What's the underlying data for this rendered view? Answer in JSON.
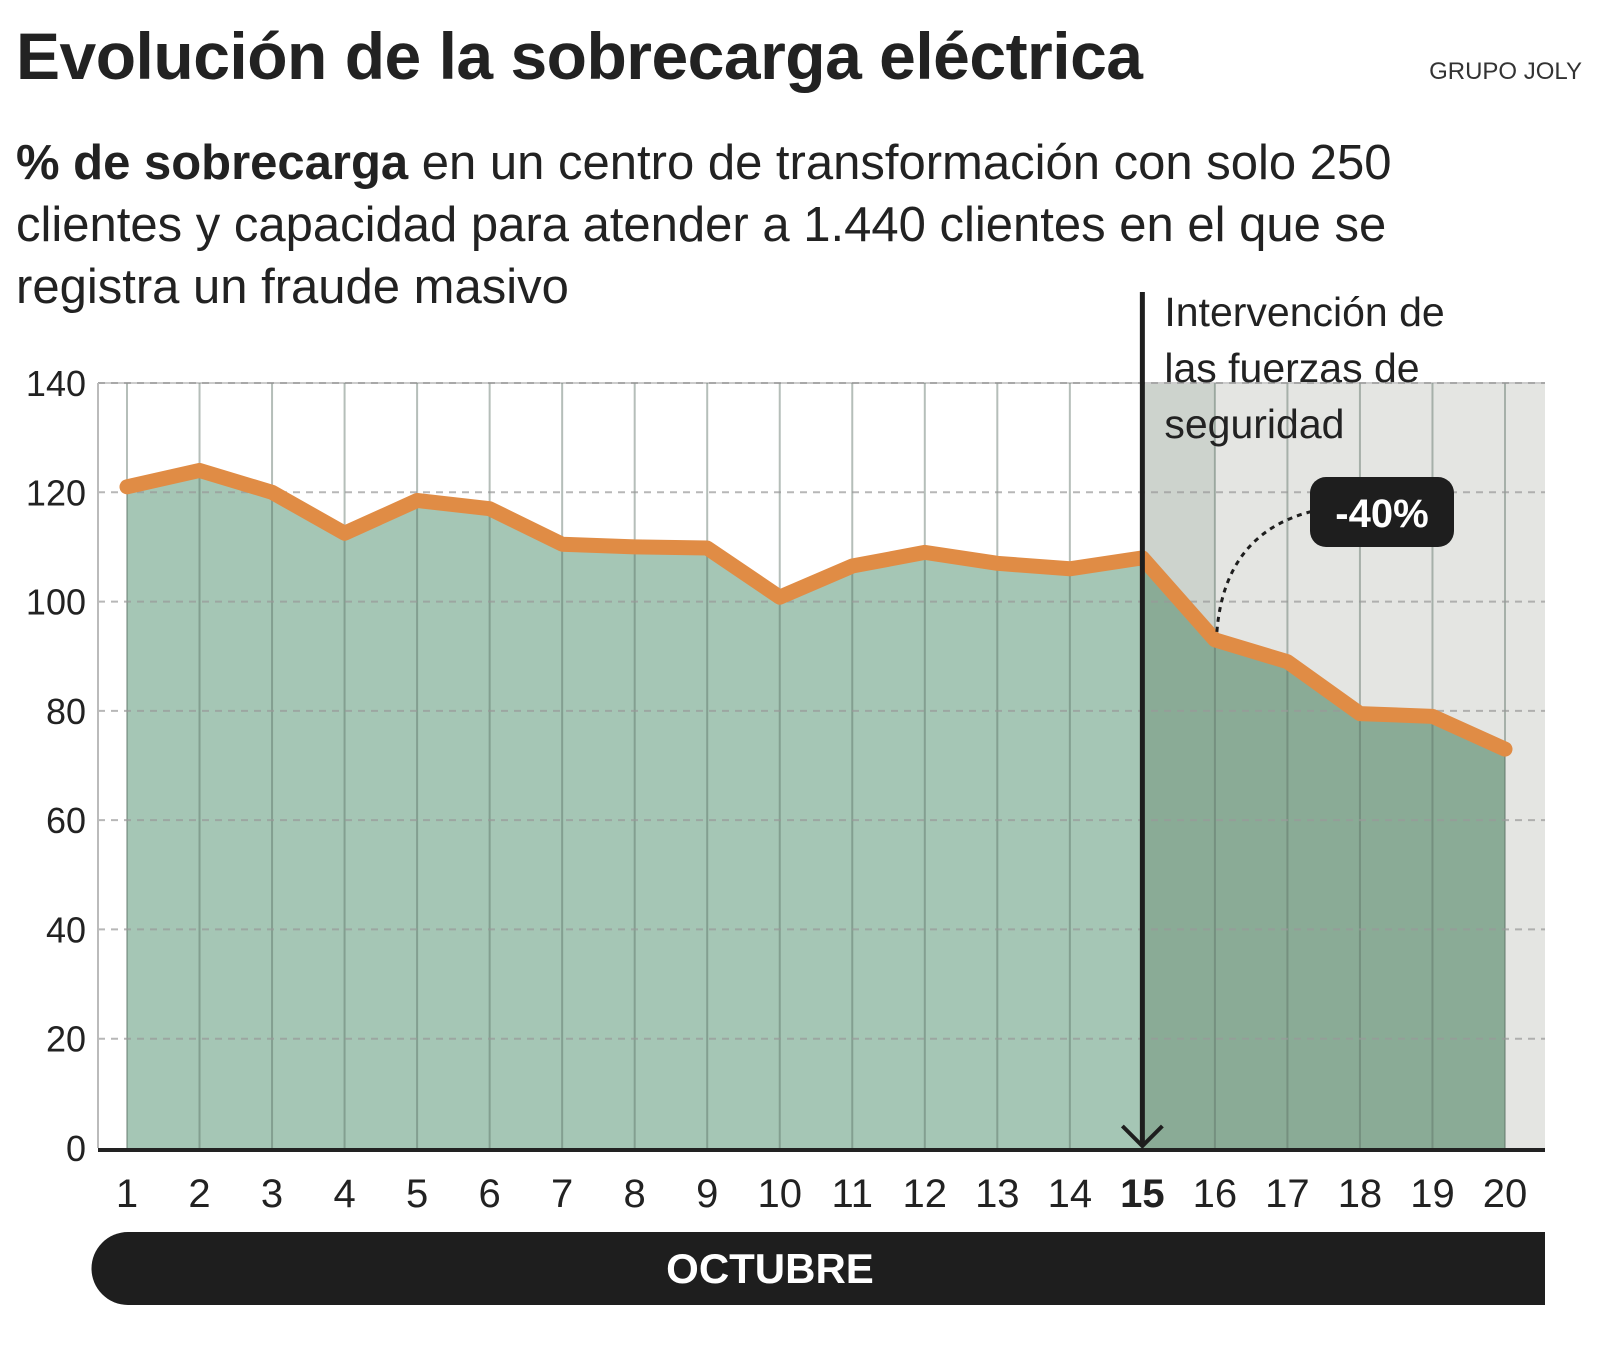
{
  "header": {
    "title": "Evolución de la sobrecarga eléctrica",
    "source": "GRUPO JOLY",
    "subtitle_bold": "% de sobrecarga",
    "subtitle_rest": " en un centro de transformación con solo 250 clientes y capacidad para atender a 1.440 clientes en el que se registra un fraude masivo"
  },
  "chart_data": {
    "type": "area",
    "x": [
      1,
      2,
      3,
      4,
      5,
      6,
      7,
      8,
      9,
      10,
      11,
      12,
      13,
      14,
      15,
      16,
      17,
      18,
      19,
      20
    ],
    "categories": [
      "1",
      "2",
      "3",
      "4",
      "5",
      "6",
      "7",
      "8",
      "9",
      "10",
      "11",
      "12",
      "13",
      "14",
      "15",
      "16",
      "17",
      "18",
      "19",
      "20"
    ],
    "values": [
      121,
      124,
      120,
      112.5,
      118.5,
      117,
      110.5,
      110,
      109.8,
      100.8,
      106.5,
      109,
      107,
      106,
      108,
      93,
      89,
      79.5,
      79,
      73
    ],
    "xlabel": "OCTUBRE",
    "ylim": [
      0,
      140
    ],
    "yticks": [
      0,
      20,
      40,
      60,
      80,
      100,
      120,
      140
    ],
    "grid": true,
    "highlight_x": 15,
    "annotations": {
      "event": [
        "Intervención de",
        "las fuerzas de",
        "seguridad"
      ],
      "change_label": "-40%"
    },
    "colors": {
      "line": "#e08c45",
      "fill": "#a5c6b5",
      "fill_after": "#8aab96",
      "shade": "#e4e5e2",
      "shade_dark": "#cdd3cd",
      "label_bg": "#1e1e1e"
    }
  }
}
